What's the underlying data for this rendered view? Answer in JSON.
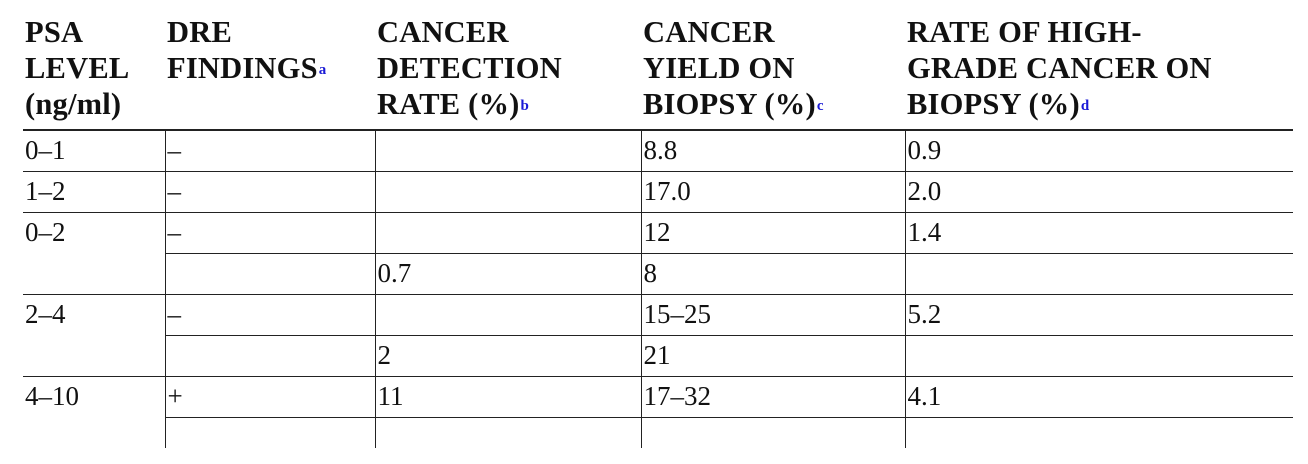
{
  "table": {
    "headers": [
      {
        "lines": [
          "PSA",
          "LEVEL",
          "(ng/ml)"
        ],
        "footnote": ""
      },
      {
        "lines": [
          "DRE",
          "FINDINGS"
        ],
        "footnote": "a"
      },
      {
        "lines": [
          "CANCER",
          "DETECTION",
          "RATE (%)"
        ],
        "footnote": "b"
      },
      {
        "lines": [
          "CANCER",
          "YIELD ON",
          "BIOPSY (%)"
        ],
        "footnote": "c"
      },
      {
        "lines": [
          "RATE OF HIGH-",
          "GRADE CANCER ON",
          "BIOPSY (%)"
        ],
        "footnote": "d"
      }
    ],
    "rows": [
      {
        "psa": "0–1",
        "dre": "–",
        "detection": "",
        "yield": "8.8",
        "high_grade": "0.9"
      },
      {
        "psa": "1–2",
        "dre": "–",
        "detection": "",
        "yield": "17.0",
        "high_grade": "2.0"
      },
      {
        "psa": "0–2",
        "dre": "–",
        "detection": "",
        "yield": "12",
        "high_grade": "1.4"
      },
      {
        "psa": "",
        "dre": "",
        "detection": "0.7",
        "yield": "8",
        "high_grade": ""
      },
      {
        "psa": "2–4",
        "dre": "–",
        "detection": "",
        "yield": "15–25",
        "high_grade": "5.2"
      },
      {
        "psa": "",
        "dre": "",
        "detection": "2",
        "yield": "21",
        "high_grade": ""
      },
      {
        "psa": "4–10",
        "dre": "+",
        "detection": "11",
        "yield": "17–32",
        "high_grade": "4.1"
      },
      {
        "psa": "",
        "dre": "",
        "detection": "",
        "yield": "",
        "high_grade": ""
      }
    ]
  },
  "colors": {
    "footnote_link": "#1a1ad6",
    "text": "#111111",
    "rule": "#222222"
  }
}
